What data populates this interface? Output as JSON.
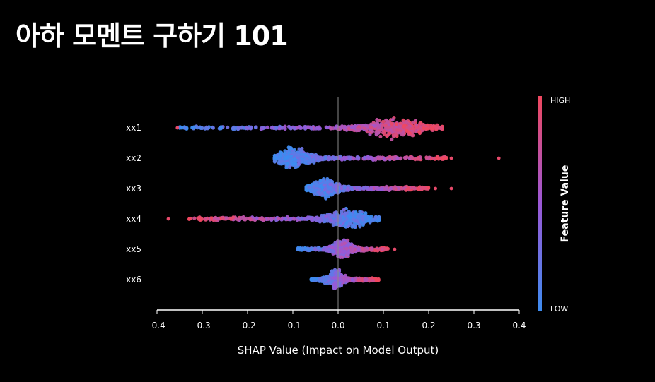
{
  "page": {
    "title": "아하 모멘트 구하기 101"
  },
  "chart_data": {
    "type": "scatter",
    "subtype": "shap_beeswarm",
    "title": "아하 모멘트 구하기 101",
    "xlabel": "SHAP Value (Impact on Model Output)",
    "xlim": [
      -0.4,
      0.4
    ],
    "xticks": [
      -0.4,
      -0.3,
      -0.2,
      -0.1,
      0.0,
      0.1,
      0.2,
      0.3,
      0.4
    ],
    "xtick_labels": [
      "-0.4",
      "-0.3",
      "-0.2",
      "-0.1",
      "0.0",
      "0.1",
      "0.2",
      "0.3",
      "0.4"
    ],
    "features": [
      {
        "name": "xx1",
        "min": -0.35,
        "max": 0.23,
        "density_peak": 0.12,
        "low_side": "negative",
        "outliers": [
          -0.355
        ]
      },
      {
        "name": "xx2",
        "min": -0.14,
        "max": 0.24,
        "density_peak": -0.1,
        "low_side": "negative",
        "outliers": [
          0.25,
          0.355
        ]
      },
      {
        "name": "xx3",
        "min": -0.07,
        "max": 0.2,
        "density_peak": -0.03,
        "low_side": "negative",
        "outliers": [
          0.215,
          0.25
        ]
      },
      {
        "name": "xx4",
        "min": -0.33,
        "max": 0.09,
        "density_peak": 0.02,
        "low_side": "positive",
        "outliers": [
          -0.375
        ]
      },
      {
        "name": "xx5",
        "min": -0.09,
        "max": 0.11,
        "density_peak": 0.01,
        "low_side": "negative",
        "outliers": [
          0.125
        ]
      },
      {
        "name": "xx6",
        "min": -0.06,
        "max": 0.09,
        "density_peak": -0.005,
        "low_side": "negative",
        "outliers": []
      }
    ],
    "colorbar": {
      "title": "Feature Value",
      "high_label": "HIGH",
      "low_label": "LOW",
      "high_color": "#f0485f",
      "mid_color": "#9b58d6",
      "low_color": "#3d8cf0"
    }
  }
}
